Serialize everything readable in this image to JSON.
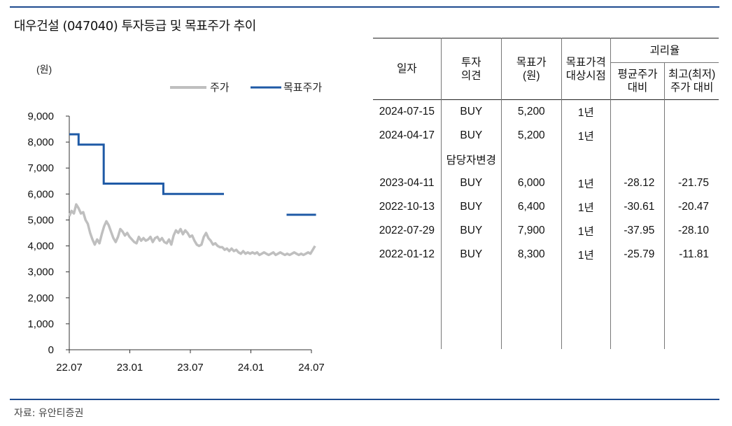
{
  "title": "대우건설 (047040) 투자등급 및 목표주가 추이",
  "source": "자료: 유안티증권",
  "chart_data": {
    "type": "line",
    "unit_label": "(원)",
    "x_ticks": [
      "22.07",
      "23.01",
      "23.07",
      "24.01",
      "24.07"
    ],
    "y_ticks": [
      "9,000",
      "8,000",
      "7,000",
      "6,000",
      "5,000",
      "4,000",
      "3,000",
      "2,000",
      "1,000",
      "0"
    ],
    "ylim": [
      0,
      9000
    ],
    "xlim": [
      "2022-07",
      "2024-07"
    ],
    "legend_position": "top-right",
    "series": [
      {
        "name": "주가",
        "color": "#bfbfbf",
        "points": [
          [
            "2022-07-01",
            5150
          ],
          [
            "2022-07-08",
            5350
          ],
          [
            "2022-07-15",
            5250
          ],
          [
            "2022-07-22",
            5600
          ],
          [
            "2022-07-29",
            5450
          ],
          [
            "2022-08-05",
            5250
          ],
          [
            "2022-08-12",
            5300
          ],
          [
            "2022-08-19",
            5000
          ],
          [
            "2022-08-26",
            4850
          ],
          [
            "2022-09-02",
            4500
          ],
          [
            "2022-09-09",
            4250
          ],
          [
            "2022-09-16",
            4050
          ],
          [
            "2022-09-23",
            4250
          ],
          [
            "2022-09-30",
            4100
          ],
          [
            "2022-10-07",
            4450
          ],
          [
            "2022-10-14",
            4750
          ],
          [
            "2022-10-21",
            4950
          ],
          [
            "2022-10-28",
            4800
          ],
          [
            "2022-11-04",
            4550
          ],
          [
            "2022-11-11",
            4300
          ],
          [
            "2022-11-18",
            4150
          ],
          [
            "2022-11-25",
            4350
          ],
          [
            "2022-12-02",
            4650
          ],
          [
            "2022-12-09",
            4550
          ],
          [
            "2022-12-16",
            4400
          ],
          [
            "2022-12-23",
            4500
          ],
          [
            "2022-12-30",
            4350
          ],
          [
            "2023-01-06",
            4250
          ],
          [
            "2023-01-13",
            4150
          ],
          [
            "2023-01-20",
            4100
          ],
          [
            "2023-01-27",
            4350
          ],
          [
            "2023-02-03",
            4200
          ],
          [
            "2023-02-10",
            4300
          ],
          [
            "2023-02-17",
            4200
          ],
          [
            "2023-02-24",
            4250
          ],
          [
            "2023-03-03",
            4350
          ],
          [
            "2023-03-10",
            4150
          ],
          [
            "2023-03-17",
            4300
          ],
          [
            "2023-03-24",
            4350
          ],
          [
            "2023-03-31",
            4200
          ],
          [
            "2023-04-07",
            4300
          ],
          [
            "2023-04-14",
            4150
          ],
          [
            "2023-04-21",
            4100
          ],
          [
            "2023-04-28",
            4250
          ],
          [
            "2023-05-05",
            4050
          ],
          [
            "2023-05-12",
            4400
          ],
          [
            "2023-05-19",
            4600
          ],
          [
            "2023-05-26",
            4500
          ],
          [
            "2023-06-02",
            4650
          ],
          [
            "2023-06-09",
            4450
          ],
          [
            "2023-06-16",
            4600
          ],
          [
            "2023-06-23",
            4500
          ],
          [
            "2023-06-30",
            4350
          ],
          [
            "2023-07-07",
            4400
          ],
          [
            "2023-07-14",
            4200
          ],
          [
            "2023-07-21",
            4050
          ],
          [
            "2023-07-28",
            4000
          ],
          [
            "2023-08-04",
            4050
          ],
          [
            "2023-08-11",
            4350
          ],
          [
            "2023-08-18",
            4500
          ],
          [
            "2023-08-25",
            4300
          ],
          [
            "2023-09-01",
            4200
          ],
          [
            "2023-09-08",
            4050
          ],
          [
            "2023-09-15",
            4100
          ],
          [
            "2023-09-22",
            4000
          ],
          [
            "2023-09-29",
            3950
          ],
          [
            "2023-10-06",
            3950
          ],
          [
            "2023-10-13",
            3850
          ],
          [
            "2023-10-20",
            3900
          ],
          [
            "2023-10-27",
            3800
          ],
          [
            "2023-11-03",
            3900
          ],
          [
            "2023-11-10",
            3800
          ],
          [
            "2023-11-17",
            3850
          ],
          [
            "2023-11-24",
            3750
          ],
          [
            "2023-12-01",
            3700
          ],
          [
            "2023-12-08",
            3800
          ],
          [
            "2023-12-15",
            3700
          ],
          [
            "2023-12-22",
            3750
          ],
          [
            "2023-12-29",
            3700
          ],
          [
            "2024-01-05",
            3750
          ],
          [
            "2024-01-12",
            3700
          ],
          [
            "2024-01-19",
            3750
          ],
          [
            "2024-01-26",
            3650
          ],
          [
            "2024-02-02",
            3700
          ],
          [
            "2024-02-09",
            3750
          ],
          [
            "2024-02-16",
            3700
          ],
          [
            "2024-02-23",
            3650
          ],
          [
            "2024-03-01",
            3700
          ],
          [
            "2024-03-08",
            3750
          ],
          [
            "2024-03-15",
            3650
          ],
          [
            "2024-03-22",
            3700
          ],
          [
            "2024-03-29",
            3750
          ],
          [
            "2024-04-05",
            3700
          ],
          [
            "2024-04-12",
            3650
          ],
          [
            "2024-04-19",
            3700
          ],
          [
            "2024-04-26",
            3650
          ],
          [
            "2024-05-03",
            3700
          ],
          [
            "2024-05-10",
            3750
          ],
          [
            "2024-05-17",
            3700
          ],
          [
            "2024-05-24",
            3650
          ],
          [
            "2024-05-31",
            3700
          ],
          [
            "2024-06-07",
            3650
          ],
          [
            "2024-06-14",
            3700
          ],
          [
            "2024-06-21",
            3750
          ],
          [
            "2024-06-28",
            3700
          ],
          [
            "2024-07-05",
            3850
          ],
          [
            "2024-07-12",
            4000
          ]
        ]
      },
      {
        "name": "목표주가",
        "color": "#1f5aa6",
        "segments": [
          [
            [
              "2022-07-01",
              8300
            ],
            [
              "2022-07-29",
              8300
            ],
            [
              "2022-07-29",
              7900
            ],
            [
              "2022-10-13",
              7900
            ],
            [
              "2022-10-13",
              6400
            ],
            [
              "2023-04-11",
              6400
            ],
            [
              "2023-04-11",
              6000
            ],
            [
              "2023-10-11",
              6000
            ]
          ],
          [
            [
              "2024-04-17",
              5200
            ],
            [
              "2024-07-15",
              5200
            ]
          ]
        ]
      }
    ]
  },
  "table": {
    "headers": {
      "date": "일자",
      "opinion": [
        "투자",
        "의견"
      ],
      "target": [
        "목표가",
        "(원)"
      ],
      "horizon": [
        "목표가격",
        "대상시점"
      ],
      "deviation": "괴리율",
      "avg_vs": [
        "평균주가",
        "대비"
      ],
      "max_vs": [
        "최고(최저)",
        "주가 대비"
      ]
    },
    "rows": [
      {
        "date": "2024-07-15",
        "opinion": "BUY",
        "target": "5,200",
        "horizon": "1년",
        "avg": "",
        "max": ""
      },
      {
        "date": "2024-04-17",
        "opinion": "BUY",
        "target": "5,200",
        "horizon": "1년",
        "avg": "",
        "max": ""
      },
      {
        "date": "",
        "opinion": "담당자변경",
        "target": "",
        "horizon": "",
        "avg": "",
        "max": ""
      },
      {
        "date": "2023-04-11",
        "opinion": "BUY",
        "target": "6,000",
        "horizon": "1년",
        "avg": "-28.12",
        "max": "-21.75"
      },
      {
        "date": "2022-10-13",
        "opinion": "BUY",
        "target": "6,400",
        "horizon": "1년",
        "avg": "-30.61",
        "max": "-20.47"
      },
      {
        "date": "2022-07-29",
        "opinion": "BUY",
        "target": "7,900",
        "horizon": "1년",
        "avg": "-37.95",
        "max": "-28.10"
      },
      {
        "date": "2022-01-12",
        "opinion": "BUY",
        "target": "8,300",
        "horizon": "1년",
        "avg": "-25.79",
        "max": "-11.81"
      }
    ]
  }
}
